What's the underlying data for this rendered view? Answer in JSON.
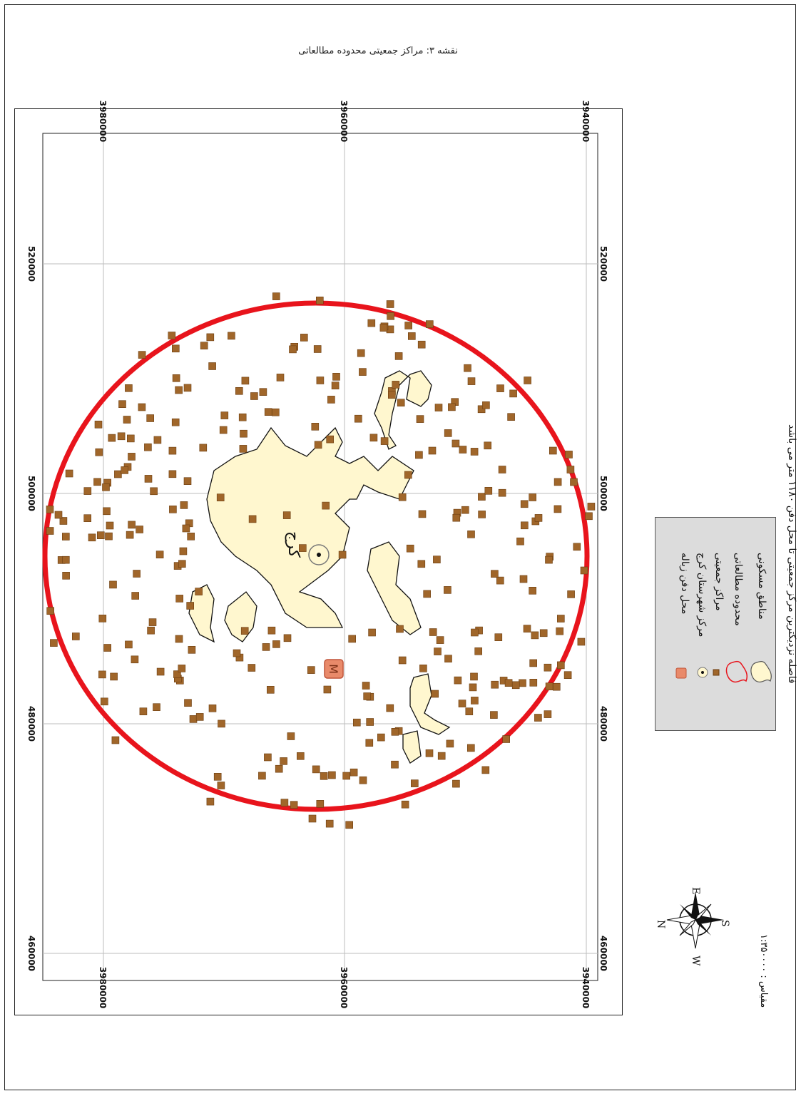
{
  "title": "نقشه ۳: مراکز جمعیتی محدوده مطالعاتی",
  "map": {
    "grid_labels_x": [
      "460000",
      "480000",
      "500000",
      "520000"
    ],
    "grid_labels_y": [
      "3940000",
      "3960000",
      "3980000"
    ],
    "city_label": "کرج",
    "colors": {
      "study_area_circle": "#e8141c",
      "population_center": "#a0662a",
      "residential_fill": "#fff7cf",
      "landfill": "#e98a6a"
    }
  },
  "legend": {
    "items": [
      {
        "icon": "landfill-icon",
        "label": "محل دفن زباله"
      },
      {
        "icon": "county-center-icon",
        "label": "مرکز شهرستان کرج"
      },
      {
        "icon": "population-center-icon",
        "label": "مراکز جمعیتی"
      },
      {
        "icon": "study-area-icon",
        "label": "محدوده مطالعاتی"
      },
      {
        "icon": "residential-area-icon",
        "label": "مناطق مسکونی"
      }
    ]
  },
  "compass": {
    "n": "N",
    "e": "E",
    "s": "S",
    "w": "W"
  },
  "scale": "مقیاس : ۱:۳۵۰۰۰۰",
  "distance_note": "فاصله نزدیکترین مرکز جمعیتی تا محل دفن ۱۱۸۰ متر می باشد"
}
